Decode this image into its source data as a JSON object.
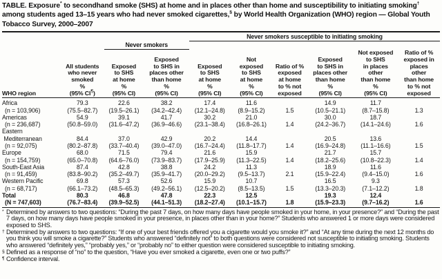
{
  "title": "TABLE. Exposure^*^ to secondhand smoke (SHS) at home and in places other than home and susceptibility to initiating smoking^†^ among students aged 13–15 years who had never smoked cigarettes,^§^ by World Health Organization (WHO) region — Global Youth Tobacco Survey, 2000–2007",
  "table": {
    "spanners": {
      "never_smokers": "Never smokers",
      "susceptible": "Never smokers susceptible to initiating smoking"
    },
    "col_keys": [
      "all-students",
      "exposed-shs-home",
      "exposed-shs-other",
      "susceptible-exposed-home",
      "susceptible-not-exposed-home",
      "ratio-home",
      "susceptible-exposed-other",
      "susceptible-not-exposed-other",
      "ratio-other"
    ],
    "columns": [
      {
        "lines": [
          "WHO region"
        ]
      },
      {
        "lines": [
          "All students",
          "who never",
          "smoked",
          "%",
          "(95% CI^¶^)"
        ]
      },
      {
        "lines": [
          "Exposed",
          "to SHS",
          "at home",
          "%",
          "(95% CI)"
        ]
      },
      {
        "lines": [
          "Exposed",
          "to SHS in",
          "places other",
          "than home",
          "%",
          "(95% CI)"
        ]
      },
      {
        "lines": [
          "Exposed",
          "to SHS",
          "at home",
          "%",
          "(95% CI)"
        ]
      },
      {
        "lines": [
          "Not",
          "exposed",
          "to SHS",
          "at home",
          "%",
          "(95% CI)"
        ]
      },
      {
        "lines": [
          "Ratio of %",
          "exposed",
          "at home",
          "to % not",
          "exposed"
        ]
      },
      {
        "lines": [
          "Exposed",
          "to SHS in",
          "places other",
          "than home",
          "%",
          "(95% CI)"
        ]
      },
      {
        "lines": [
          "Not exposed",
          "to SHS",
          "in places",
          "other",
          "than home",
          "%",
          "(95% CI)"
        ]
      },
      {
        "lines": [
          "Ratio of %",
          "exposed in",
          "places",
          "other",
          "than home",
          "to % not",
          "exposed"
        ]
      }
    ],
    "rows": [
      {
        "region_lines": [
          "Africa"
        ],
        "n": "(n = 103,906)",
        "bold": false,
        "values": [
          {
            "pct": "79.3",
            "ci": "(75.5–82.7)"
          },
          {
            "pct": "22.6",
            "ci": "(19.5–26.1)"
          },
          {
            "pct": "38.2",
            "ci": "(34.2–42.4)"
          },
          {
            "pct": "17.4",
            "ci": "(12.1–24.8)"
          },
          {
            "pct": "11.6",
            "ci": "(8.9–15.2)"
          },
          {
            "ratio": "1.5"
          },
          {
            "pct": "14.9",
            "ci": "(10.5–21.1)"
          },
          {
            "pct": "11.7",
            "ci": "(8.7–15.8)"
          },
          {
            "ratio": "1.3"
          }
        ]
      },
      {
        "region_lines": [
          "Americas"
        ],
        "n": "(n = 236,687)",
        "bold": false,
        "values": [
          {
            "pct": "54.9",
            "ci": "(50.8–59.0)"
          },
          {
            "pct": "39.1",
            "ci": "(31.6–47.2)"
          },
          {
            "pct": "41.7",
            "ci": "(36.9–46.6)"
          },
          {
            "pct": "30.2",
            "ci": "(23.1–38.4)"
          },
          {
            "pct": "21.0",
            "ci": "(16.8–26.1)"
          },
          {
            "ratio": "1.4"
          },
          {
            "pct": "30.0",
            "ci": "(24.2–36.7)"
          },
          {
            "pct": "18.7",
            "ci": "(14.1–24.6)"
          },
          {
            "ratio": "1.6"
          }
        ]
      },
      {
        "region_lines": [
          "Eastern",
          " Mediterranean"
        ],
        "n": "(n = 92,075)",
        "bold": false,
        "values": [
          {
            "pct": "84.4",
            "ci": "(80.2–87.8)"
          },
          {
            "pct": "37.0",
            "ci": "(33.7–40.4)"
          },
          {
            "pct": "42.9",
            "ci": "(39.0–47.0)"
          },
          {
            "pct": "20.2",
            "ci": "(16.7–24.4)"
          },
          {
            "pct": "14.4",
            "ci": "(11.8–17.7)"
          },
          {
            "ratio": "1.4"
          },
          {
            "pct": "20.5",
            "ci": "(16.9–24.8)"
          },
          {
            "pct": "13.6",
            "ci": "(11.1–16.6)"
          },
          {
            "ratio": "1.5"
          }
        ]
      },
      {
        "region_lines": [
          "Europe"
        ],
        "n": "(n = 154,759)",
        "bold": false,
        "values": [
          {
            "pct": "68.0",
            "ci": "(65.0–70.8)"
          },
          {
            "pct": "71.5",
            "ci": "(64.6–76.0)"
          },
          {
            "pct": "79.4",
            "ci": "(73.9–83.7)"
          },
          {
            "pct": "21.6",
            "ci": "(17.9–25.9)"
          },
          {
            "pct": "15.9",
            "ci": "(11.3–22.5)"
          },
          {
            "ratio": "1.4"
          },
          {
            "pct": "21.7",
            "ci": "(18.2–25.6)"
          },
          {
            "pct": "15.7",
            "ci": "(10.8–22.3)"
          },
          {
            "ratio": "1.4"
          }
        ]
      },
      {
        "region_lines": [
          "South-East Asia"
        ],
        "n": "(n = 91,459)",
        "bold": false,
        "values": [
          {
            "pct": "87.4",
            "ci": "(83.8–90.2)"
          },
          {
            "pct": "42.8",
            "ci": "(35.2–49.7)"
          },
          {
            "pct": "38.8",
            "ci": "(35.9–41.7)"
          },
          {
            "pct": "24.2",
            "ci": "(20.0–29.2)"
          },
          {
            "pct": "11.3",
            "ci": "(9.5–13.7)"
          },
          {
            "ratio": "2.1"
          },
          {
            "pct": "18.9",
            "ci": "(15.9–22.4)"
          },
          {
            "pct": "11.6",
            "ci": "(9.4–15.0)"
          },
          {
            "ratio": "1.6"
          }
        ]
      },
      {
        "region_lines": [
          "Western Pacific"
        ],
        "n": "(n = 68,717)",
        "bold": false,
        "values": [
          {
            "pct": "69.8",
            "ci": "(66.1–73.2)"
          },
          {
            "pct": "57.3",
            "ci": "(48.5–65.3)"
          },
          {
            "pct": "52.6",
            "ci": "(49.2–56.1)"
          },
          {
            "pct": "15.9",
            "ci": "(12.5–20.2)"
          },
          {
            "pct": "10.7",
            "ci": "(8.5–13.5)"
          },
          {
            "ratio": "1.5"
          },
          {
            "pct": "16.5",
            "ci": "(13.3–20.3)"
          },
          {
            "pct": "9.3",
            "ci": "(7.1–12.2)"
          },
          {
            "ratio": "1.8"
          }
        ]
      },
      {
        "region_lines": [
          "Total"
        ],
        "n": "(N = 747,603)",
        "bold": true,
        "values": [
          {
            "pct": "80.3",
            "ci": "(76.7–83.4)"
          },
          {
            "pct": "46.8",
            "ci": "(39.9–52.5)"
          },
          {
            "pct": "47.8",
            "ci": "(44.1–51.3)"
          },
          {
            "pct": "22.3",
            "ci": "(18.2–27.4)"
          },
          {
            "pct": "12.5",
            "ci": "(10.1–15.7)"
          },
          {
            "ratio": "1.8"
          },
          {
            "pct": "19.3",
            "ci": "(15.9–23.3)"
          },
          {
            "pct": "12.4",
            "ci": "(9.7–16.2)"
          },
          {
            "ratio": "1.6"
          }
        ]
      }
    ]
  },
  "footnotes": [
    {
      "marker": "*",
      "text": "Determined by answers to two questions: “During the past 7 days, on how many days have people smoked in your home, in your presence?” and “During the past 7 days, on how many days have people smoked in your presence, in places other than in your home?” Students who answered 1 or more days were considered exposed to SHS."
    },
    {
      "marker": "†",
      "text": "Determined by answers to two questions: “If one of your best friends offered you a cigarette would you smoke it?” and “At any time during the next 12 months do you think you will smoke a cigarette?” Students who answered “definitely not” to both questions were considered not susceptible to initiating smoking. Students who answered “definitely yes,” “probably yes,” or “probably no” to either question were considered susceptible to initiating smoking."
    },
    {
      "marker": "§",
      "text": "Defined as a response of “no” to the question, “Have you ever smoked a cigarette, even one or two puffs?”"
    },
    {
      "marker": "¶",
      "text": "Confidence interval."
    }
  ]
}
